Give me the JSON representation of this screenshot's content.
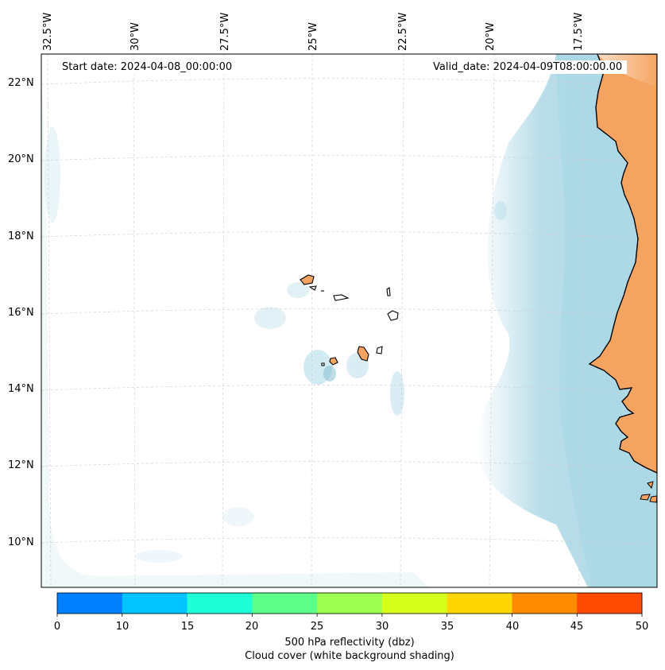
{
  "map": {
    "start_date": "Start date: 2024-04-08_00:00:00",
    "valid_date": "Valid_date: 2024-04-09T08:00:00.00",
    "lon_labels": [
      "32.5°W",
      "30°W",
      "27.5°W",
      "25°W",
      "22.5°W",
      "20°W",
      "17.5°W"
    ],
    "lat_labels": [
      "22°N",
      "20°N",
      "18°N",
      "16°N",
      "14°N",
      "12°N",
      "10°N"
    ]
  },
  "colorbar": {
    "ticks": [
      "0",
      "10",
      "15",
      "20",
      "25",
      "30",
      "35",
      "40",
      "45",
      "50"
    ],
    "colors": [
      "#0080ff",
      "#00c3ff",
      "#1effd6",
      "#5cff8a",
      "#9dff50",
      "#d6ff1c",
      "#ffd700",
      "#ff8c00",
      "#ff4a00"
    ],
    "label_line1": "500 hPa reflectivity (dbz)",
    "label_line2": "Cloud cover (white background shading)"
  },
  "colors": {
    "land": "#f4a460",
    "cloud": "#add8e6",
    "grid": "#cfcfcf"
  }
}
